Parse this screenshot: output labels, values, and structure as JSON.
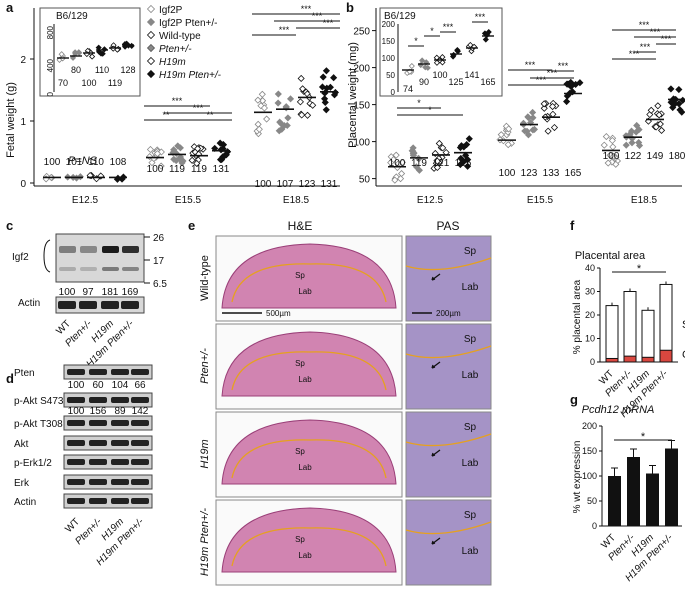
{
  "panels": {
    "a": {
      "letter": "a",
      "ylabel": "Fetal weight (g)",
      "pns": "P=NS",
      "xticks": [
        "E12.5",
        "E15.5",
        "E18.5"
      ],
      "yticks": [
        "0",
        "1",
        "2"
      ],
      "n_e12": [
        "100",
        "101",
        "110",
        "108"
      ],
      "n_e15": [
        "100",
        "119",
        "119",
        "131"
      ],
      "n_e18": [
        "100",
        "107",
        "123",
        "131"
      ],
      "inset_title": "B6/129",
      "inset_yticks": [
        "0",
        "400",
        "800"
      ],
      "inset_n": [
        "70",
        "80",
        "100",
        "110",
        "119",
        "128"
      ],
      "stars": "***",
      "stars2": "**"
    },
    "b": {
      "letter": "b",
      "ylabel": "Placental weight (mg)",
      "xticks": [
        "E12.5",
        "E15.5",
        "E18.5"
      ],
      "yticks": [
        "50",
        "100",
        "150",
        "200",
        "250"
      ],
      "n_e12": [
        "100",
        "119",
        "121",
        "125"
      ],
      "n_e15": [
        "100",
        "123",
        "133",
        "165"
      ],
      "n_e18": [
        "100",
        "122",
        "149",
        "180"
      ],
      "inset_title": "B6/129",
      "inset_yticks": [
        "0",
        "50",
        "100",
        "150",
        "200"
      ],
      "inset_n": [
        "74",
        "90",
        "100",
        "125",
        "141",
        "165"
      ],
      "stars": "***",
      "star1": "*"
    },
    "c": {
      "letter": "c",
      "label": "Igf2",
      "actin": "Actin",
      "mw": [
        "26",
        "17",
        "6.5"
      ],
      "values": [
        "100",
        "97",
        "181",
        "169"
      ],
      "lanes": [
        "WT",
        "Pten+/-",
        "H19m",
        "H19m Pten+/-"
      ]
    },
    "d": {
      "letter": "d",
      "rows": [
        "Pten",
        "p-Akt S473",
        "p-Akt T308",
        "Akt",
        "p-Erk1/2",
        "Erk",
        "Actin"
      ],
      "pten_values": [
        "100",
        "60",
        "104",
        "66"
      ],
      "pakt_values": [
        "100",
        "156",
        "89",
        "142"
      ],
      "lanes": [
        "WT",
        "Pten+/-",
        "H19m",
        "H19m Pten+/-"
      ]
    },
    "e": {
      "letter": "e",
      "col1": "H&E",
      "col2": "PAS",
      "rows": [
        "Wild-type",
        "Pten+/-",
        "H19m",
        "H19m Pten+/-"
      ],
      "sp": "Sp",
      "lab": "Lab",
      "scale1": "500µm",
      "scale2": "200µm"
    },
    "f": {
      "letter": "f",
      "title": "Placental area",
      "ylabel": "% placental area",
      "yticks": [
        "0",
        "10",
        "20",
        "30",
        "40"
      ],
      "sp": "Sp",
      "gly": "Gly",
      "star": "*",
      "lanes": [
        "WT",
        "Pten+/-",
        "H19m",
        "H19m Pten+/-"
      ]
    },
    "g": {
      "letter": "g",
      "title": "Pcdh12 mRNA",
      "ylabel": "% wt expression",
      "yticks": [
        "0",
        "50",
        "100",
        "150",
        "200"
      ],
      "star": "*",
      "lanes": [
        "WT",
        "Pten+/-",
        "H19m",
        "H19m Pten+/-"
      ]
    }
  },
  "legend": [
    "Igf2P",
    "Igf2P Pten+/-",
    "Wild-type",
    "Pten+/-",
    "H19m",
    "H19m Pten+/-"
  ],
  "colors": {
    "he": "#c96fa3",
    "pas": "#8e78b8",
    "outline": "#e6a020",
    "red": "#d9473f",
    "black": "#111111"
  },
  "chart_data": [
    {
      "type": "scatter",
      "title": "Fetal weight",
      "ylabel": "Fetal weight (g)",
      "ylim": [
        0,
        2
      ],
      "categories": [
        "E12.5",
        "E15.5",
        "E18.5"
      ],
      "series": [
        {
          "name": "Igf2P / WT",
          "values": [
            0.09,
            0.41,
            1.14
          ]
        },
        {
          "name": "Pten+/-",
          "values": [
            0.09,
            0.46,
            1.19
          ]
        },
        {
          "name": "H19m",
          "values": [
            0.09,
            0.44,
            1.38
          ]
        },
        {
          "name": "H19m Pten+/-",
          "values": [
            0.09,
            0.52,
            1.47
          ]
        }
      ]
    },
    {
      "type": "scatter",
      "title": "Placental weight",
      "ylabel": "Placental weight (mg)",
      "ylim": [
        40,
        250
      ],
      "categories": [
        "E12.5",
        "E15.5",
        "E18.5"
      ],
      "series": [
        {
          "name": "WT",
          "values": [
            66,
            102,
            88
          ]
        },
        {
          "name": "Pten+/-",
          "values": [
            78,
            123,
            106
          ]
        },
        {
          "name": "H19m",
          "values": [
            82,
            133,
            130
          ]
        },
        {
          "name": "H19m Pten+/-",
          "values": [
            85,
            165,
            157
          ]
        }
      ]
    },
    {
      "type": "bar",
      "title": "Placental area",
      "ylabel": "% placental area",
      "ylim": [
        0,
        40
      ],
      "categories": [
        "WT",
        "Pten+/-",
        "H19m",
        "H19m Pten+/-"
      ],
      "series": [
        {
          "name": "Sp",
          "values": [
            24,
            30,
            22,
            33
          ]
        },
        {
          "name": "Gly",
          "values": [
            1.5,
            2.5,
            2,
            5
          ]
        }
      ]
    },
    {
      "type": "bar",
      "title": "Pcdh12 mRNA",
      "ylabel": "% wt expression",
      "ylim": [
        0,
        200
      ],
      "categories": [
        "WT",
        "Pten+/-",
        "H19m",
        "H19m Pten+/-"
      ],
      "values": [
        100,
        138,
        105,
        155
      ]
    }
  ]
}
